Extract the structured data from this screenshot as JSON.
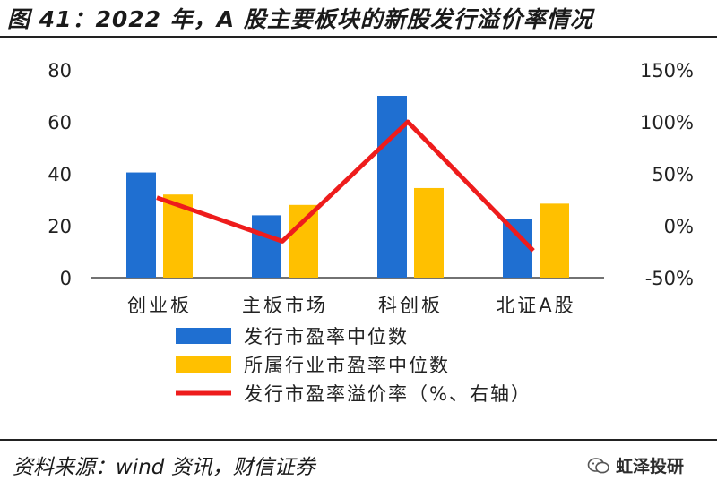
{
  "header": {
    "title": "图 41：2022 年，A 股主要板块的新股发行溢价率情况"
  },
  "footer": {
    "source": "资料来源：wind 资讯，财信证券",
    "watermark": "虹泽投研"
  },
  "chart_data": {
    "type": "bar",
    "categories": [
      "创业板",
      "主板市场",
      "科创板",
      "北证A股"
    ],
    "series": [
      {
        "name": "发行市盈率中位数",
        "kind": "bar",
        "axis": "left",
        "color": "#1f6fd1",
        "values": [
          40.5,
          24,
          70,
          22.5
        ]
      },
      {
        "name": "所属行业市盈率中位数",
        "kind": "bar",
        "axis": "left",
        "color": "#ffc000",
        "values": [
          32,
          28,
          34.5,
          28.5
        ]
      },
      {
        "name": "发行市盈率溢价率（%、右轴）",
        "kind": "line",
        "axis": "right",
        "color": "#ee1c1c",
        "values": [
          27,
          -15,
          100,
          -24
        ]
      }
    ],
    "yleft": {
      "ticks": [
        "0",
        "20",
        "40",
        "60",
        "80"
      ],
      "lim": [
        0,
        80
      ]
    },
    "yright": {
      "ticks": [
        "-50%",
        "0%",
        "50%",
        "100%",
        "150%"
      ],
      "lim": [
        -50,
        150
      ]
    },
    "legend_position": "bottom",
    "grid": false
  }
}
